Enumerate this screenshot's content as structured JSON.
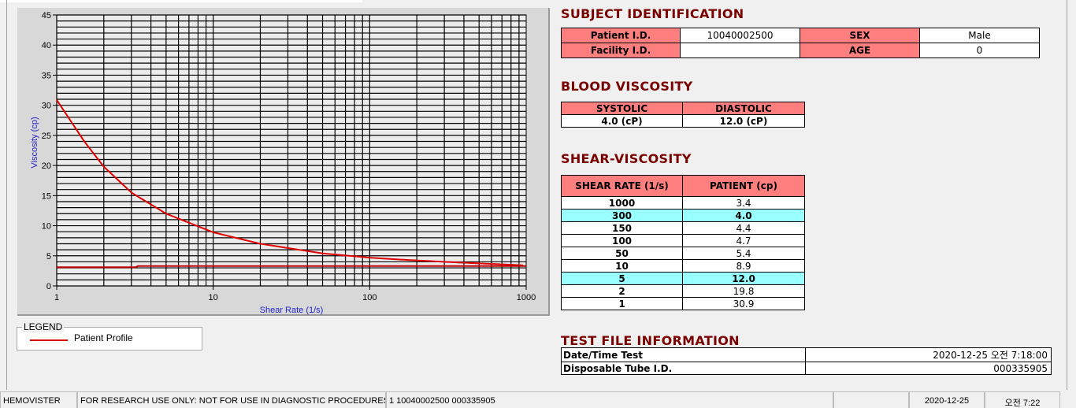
{
  "chart_data": {
    "type": "line",
    "xlabel": "Shear Rate (1/s)",
    "ylabel": "Viscosity (cp)",
    "xscale": "log",
    "xlim": [
      1,
      1000
    ],
    "ylim": [
      0,
      45
    ],
    "xticks": [
      "1",
      "10",
      "100",
      "1000"
    ],
    "yticks": [
      "0",
      "5",
      "10",
      "15",
      "20",
      "25",
      "30",
      "35",
      "40",
      "45"
    ],
    "grid": true,
    "series": [
      {
        "name": "Patient Profile",
        "color": "#e00000",
        "x": [
          1,
          1.5,
          2,
          3,
          5,
          10,
          20,
          50,
          100,
          150,
          300,
          1000
        ],
        "y": [
          30.9,
          24,
          19.8,
          15.5,
          12.0,
          8.9,
          7.0,
          5.4,
          4.7,
          4.4,
          4.0,
          3.4
        ]
      },
      {
        "color": "#c00000",
        "x": [
          1,
          3.2,
          3.3,
          1000
        ],
        "y": [
          3.1,
          3.1,
          3.3,
          3.3
        ]
      }
    ]
  },
  "legend": {
    "title": "LEGEND",
    "items": [
      "Patient Profile"
    ]
  },
  "subject": {
    "title": "SUBJECT IDENTIFICATION",
    "patient_id_label": "Patient I.D.",
    "patient_id": "10040002500",
    "sex_label": "SEX",
    "sex": "Male",
    "facility_label": "Facility I.D.",
    "facility": "",
    "age_label": "AGE",
    "age": "0"
  },
  "blood": {
    "title": "BLOOD VISCOSITY",
    "systolic_label": "SYSTOLIC",
    "diastolic_label": "DIASTOLIC",
    "systolic": "4.0 (cP)",
    "diastolic": "12.0 (cP)"
  },
  "shear": {
    "title": "SHEAR-VISCOSITY",
    "col1": "SHEAR RATE (1/s)",
    "col2": "PATIENT (cp)",
    "rows": [
      [
        "1000",
        "3.4"
      ],
      [
        "300",
        "4.0"
      ],
      [
        "150",
        "4.4"
      ],
      [
        "100",
        "4.7"
      ],
      [
        "50",
        "5.4"
      ],
      [
        "10",
        "8.9"
      ],
      [
        "5",
        "12.0"
      ],
      [
        "2",
        "19.8"
      ],
      [
        "1",
        "30.9"
      ]
    ],
    "highlight_color": "#99ffff"
  },
  "testfile": {
    "title": "TEST FILE INFORMATION",
    "date_label": "Date/Time Test",
    "date": "2020-12-25   오전 7:18:00",
    "tube_label": "Disposable Tube I.D.",
    "tube": "000335905"
  },
  "status": {
    "app": "HEMOVISTER",
    "notice": "FOR RESEARCH USE ONLY: NOT FOR USE IN DIAGNOSTIC PROCEDURES",
    "file": "1  10040002500  000335905",
    "blank": "",
    "date": "2020-12-25",
    "time": "오전 7:22"
  }
}
